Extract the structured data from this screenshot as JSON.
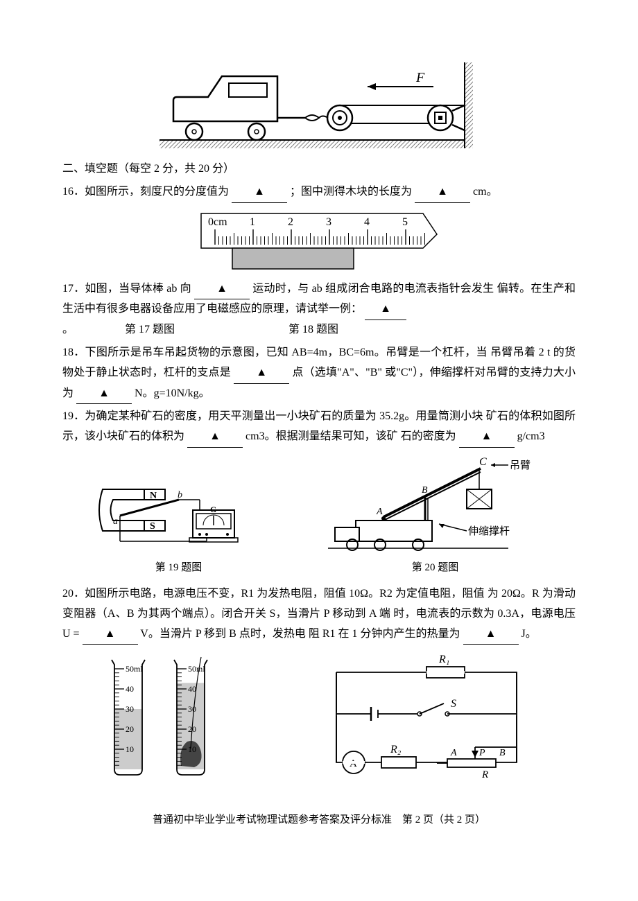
{
  "section2_header": "二、填空题（每空 2 分，共 20 分）",
  "q16": {
    "text_before": "16．如图所示，刻度尺的分度值为",
    "text_mid": "；图中测得木块的长度为",
    "text_after": "cm。",
    "blank_marker": "▲",
    "ruler": {
      "labels": [
        "0cm",
        "1",
        "2",
        "3",
        "4",
        "5"
      ],
      "major_ticks": 6,
      "minor_per_major": 10,
      "stroke": "#000000",
      "block_fill": "#b8b8b8"
    }
  },
  "q17": {
    "t1": "17．如图，当导体棒 ab 向",
    "t2": "运动时，与 ab 组成闭合电路的电流表指针会发生",
    "t3": "偏转。在生产和生活中有很多电器设备应用了电磁感应的原理，请试举一例：",
    "t4": "。",
    "blank_marker": "▲",
    "caption_left": "第 17 题图",
    "caption_right": "第 18 题图"
  },
  "q18": {
    "t1": "18．下图所示是吊车吊起货物的示意图，已知 AB=4m，BC=6m。吊臂是一个杠杆，当",
    "t2": "吊臂吊着 2 t 的货物处于静止状态时，杠杆的支点是",
    "t3": "点（选填\"A\"、\"B\"",
    "t4": "或\"C\"），伸缩撑杆对吊臂的支持力大小为",
    "t5": "N。g=10N/kg。",
    "blank_marker": "▲"
  },
  "q19": {
    "t1": "19．为确定某种矿石的密度，用天平测量出一小块矿石的质量为 35.2g。用量筒测小块",
    "t2": "矿石的体积如图所示，该小块矿石的体积为",
    "t3": " cm3。根据测量结果可知，该矿",
    "t4": "石的密度为",
    "t5": " g/cm3",
    "blank_marker": "▲",
    "caption_left": "第 19 题图",
    "caption_right": "第 20 题图"
  },
  "q20": {
    "t1": "20．如图所示电路，电源电压不变，R1 为发热电阻，阻值 10Ω。R2 为定值电阻，阻值",
    "t2": "为 20Ω。R 为滑动变阻器（A、B 为其两个端点）。闭合开关 S，当滑片 P 移动到 A 端",
    "t3": "时，电流表的示数为 0.3A，电源电压 U =",
    "t4": " V。当滑片 P 移到 B 点时，发热电",
    "t5": "阻 R1 在 1 分钟内产生的热量为",
    "t6": "J。",
    "blank_marker": "▲"
  },
  "top_figure": {
    "force_label": "F",
    "stroke": "#000000",
    "hatch_fill": "#808080"
  },
  "fig17": {
    "N": "N",
    "S": "S",
    "a": "a",
    "b": "b",
    "G": "G"
  },
  "fig18": {
    "A": "A",
    "B": "B",
    "C": "C",
    "label_arm": "吊臂",
    "label_strut": "伸缩撑杆"
  },
  "cylinders": {
    "marks": [
      "50ml",
      "40",
      "30",
      "20",
      "10"
    ],
    "water1_level": 30,
    "water2_level": 43,
    "water_fill": "#cccccc",
    "rock_fill": "#444444"
  },
  "circuit": {
    "R1": "R₁",
    "R2": "R₂",
    "S": "S",
    "A_meter": "A",
    "A": "A",
    "B": "B",
    "P": "P",
    "R": "R"
  },
  "footer": "普通初中毕业学业考试物理试题参考答案及评分标准　第 2 页（共 2 页）"
}
